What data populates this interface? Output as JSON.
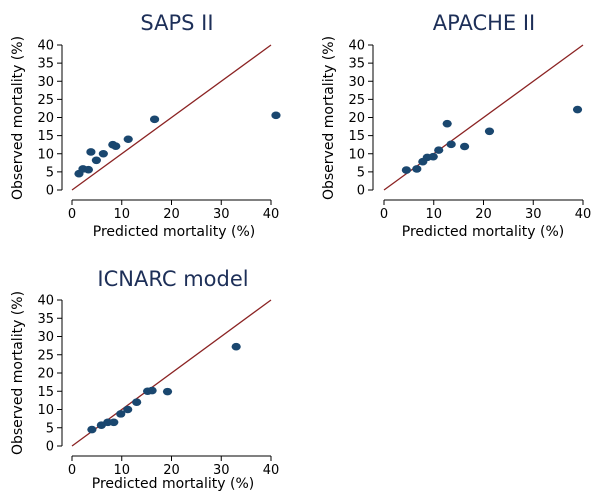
{
  "colors": {
    "title": "#1d2f58",
    "point": "#1a476f",
    "reference_line": "#8b2323",
    "axis": "#000000"
  },
  "chart_data": [
    {
      "type": "scatter",
      "title": "SAPS II",
      "xlabel": "Predicted mortality (%)",
      "ylabel": "Observed mortality (%)",
      "xlim": [
        0,
        40
      ],
      "ylim": [
        0,
        40
      ],
      "xticks": [
        "0",
        "10",
        "20",
        "30",
        "40"
      ],
      "yticks": [
        "0",
        "5",
        "10",
        "15",
        "20",
        "25",
        "30",
        "35",
        "40"
      ],
      "reference_line": {
        "type": "identity",
        "from": [
          0,
          0
        ],
        "to": [
          40,
          40
        ]
      },
      "grid": false,
      "points": [
        {
          "x": 1.4,
          "y": 4.5
        },
        {
          "x": 2.2,
          "y": 5.8
        },
        {
          "x": 3.3,
          "y": 5.6
        },
        {
          "x": 3.8,
          "y": 10.5
        },
        {
          "x": 4.9,
          "y": 8.2
        },
        {
          "x": 6.3,
          "y": 10.0
        },
        {
          "x": 8.2,
          "y": 12.5
        },
        {
          "x": 8.8,
          "y": 12.1
        },
        {
          "x": 11.3,
          "y": 14.0
        },
        {
          "x": 16.6,
          "y": 19.5
        },
        {
          "x": 41.0,
          "y": 20.6
        }
      ]
    },
    {
      "type": "scatter",
      "title": "APACHE II",
      "xlabel": "Predicted mortality (%)",
      "ylabel": "Observed mortality (%)",
      "xlim": [
        0,
        40
      ],
      "ylim": [
        0,
        40
      ],
      "xticks": [
        "0",
        "10",
        "20",
        "30",
        "40"
      ],
      "yticks": [
        "0",
        "5",
        "10",
        "15",
        "20",
        "25",
        "30",
        "35",
        "40"
      ],
      "reference_line": {
        "type": "identity",
        "from": [
          0,
          0
        ],
        "to": [
          40,
          40
        ]
      },
      "grid": false,
      "points": [
        {
          "x": 4.5,
          "y": 5.5
        },
        {
          "x": 6.6,
          "y": 5.8
        },
        {
          "x": 7.8,
          "y": 7.8
        },
        {
          "x": 8.7,
          "y": 9.0
        },
        {
          "x": 9.9,
          "y": 9.2
        },
        {
          "x": 11.0,
          "y": 11.0
        },
        {
          "x": 12.7,
          "y": 18.3
        },
        {
          "x": 13.5,
          "y": 12.6
        },
        {
          "x": 16.2,
          "y": 12.0
        },
        {
          "x": 21.2,
          "y": 16.2
        },
        {
          "x": 38.9,
          "y": 22.2
        }
      ]
    },
    {
      "type": "scatter",
      "title": "ICNARC model",
      "xlabel": "Predicted mortality (%)",
      "ylabel": "Observed mortality (%)",
      "xlim": [
        0,
        40
      ],
      "ylim": [
        0,
        40
      ],
      "xticks": [
        "0",
        "10",
        "20",
        "30",
        "40"
      ],
      "yticks": [
        "0",
        "5",
        "10",
        "15",
        "20",
        "25",
        "30",
        "35",
        "40"
      ],
      "reference_line": {
        "type": "identity",
        "from": [
          0,
          0
        ],
        "to": [
          40,
          40
        ]
      },
      "grid": false,
      "points": [
        {
          "x": 4.0,
          "y": 4.5
        },
        {
          "x": 5.9,
          "y": 5.7
        },
        {
          "x": 7.2,
          "y": 6.5
        },
        {
          "x": 8.4,
          "y": 6.5
        },
        {
          "x": 9.8,
          "y": 8.8
        },
        {
          "x": 11.2,
          "y": 10.0
        },
        {
          "x": 13.0,
          "y": 12.0
        },
        {
          "x": 15.2,
          "y": 15.0
        },
        {
          "x": 16.1,
          "y": 15.2
        },
        {
          "x": 19.2,
          "y": 14.9
        },
        {
          "x": 33.0,
          "y": 27.2
        }
      ]
    }
  ]
}
